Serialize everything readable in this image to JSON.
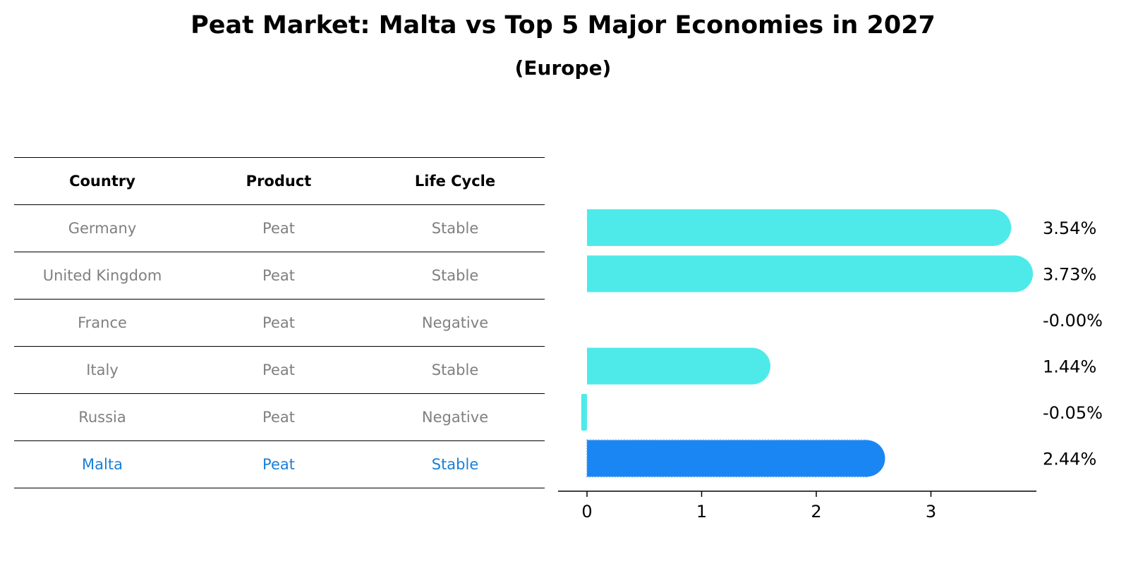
{
  "title": "Peat Market: Malta vs Top 5 Major Economies in 2027",
  "subtitle": "(Europe)",
  "table": {
    "headers": [
      "Country",
      "Product",
      "Life Cycle"
    ],
    "rows": [
      {
        "country": "Germany",
        "product": "Peat",
        "life_cycle": "Stable",
        "highlight": false
      },
      {
        "country": "United Kingdom",
        "product": "Peat",
        "life_cycle": "Stable",
        "highlight": false
      },
      {
        "country": "France",
        "product": "Peat",
        "life_cycle": "Negative",
        "highlight": false
      },
      {
        "country": "Italy",
        "product": "Peat",
        "life_cycle": "Stable",
        "highlight": false
      },
      {
        "country": "Russia",
        "product": "Peat",
        "life_cycle": "Negative",
        "highlight": false
      },
      {
        "country": "Malta",
        "product": "Peat",
        "life_cycle": "Stable",
        "highlight": true
      }
    ]
  },
  "colors": {
    "bar": "#4eeaea",
    "highlight_bar": "#1a86f4",
    "highlight_text": "#1a7fd8",
    "muted_text": "#808080"
  },
  "chart_data": {
    "type": "bar",
    "orientation": "horizontal",
    "categories": [
      "Germany",
      "United Kingdom",
      "France",
      "Italy",
      "Russia",
      "Malta"
    ],
    "values": [
      3.54,
      3.73,
      -0.0,
      1.44,
      -0.05,
      2.44
    ],
    "value_labels": [
      "3.54%",
      "3.73%",
      "-0.00%",
      "1.44%",
      "-0.05%",
      "2.44%"
    ],
    "highlight_index": 5,
    "xlim": [
      -0.25,
      3.92
    ],
    "xticks": [
      0,
      1,
      2,
      3
    ],
    "xtick_labels": [
      "0",
      "1",
      "2",
      "3"
    ],
    "xlabel": "",
    "ylabel": "",
    "grid": false,
    "legend": false
  }
}
